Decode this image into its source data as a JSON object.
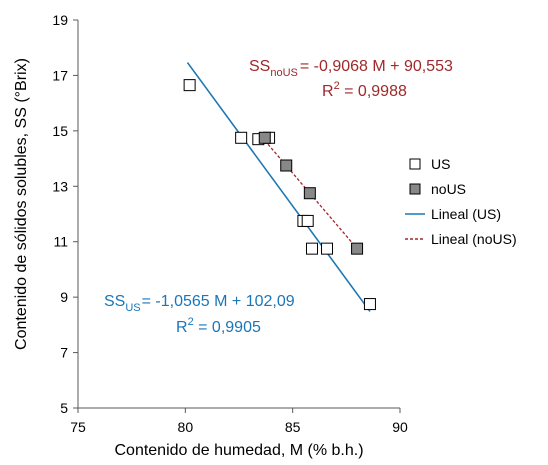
{
  "chart_data": {
    "type": "scatter",
    "xlabel": "Contenido de humedad, M (% b.h.)",
    "ylabel": "Contenido de sólidos solubles, SS (°Brix)",
    "xlim": [
      75,
      90
    ],
    "ylim": [
      5,
      19
    ],
    "x_ticks": [
      "75",
      "80",
      "85",
      "90"
    ],
    "y_ticks": [
      "5",
      "7",
      "9",
      "11",
      "13",
      "15",
      "17",
      "19"
    ],
    "grid": false,
    "legend_position": "right",
    "series": [
      {
        "name": "US",
        "marker": "square-open",
        "color": "#000000",
        "x": [
          80.2,
          82.6,
          83.4,
          83.9,
          85.5,
          85.7,
          85.9,
          86.6,
          88.6
        ],
        "y": [
          16.65,
          14.75,
          14.7,
          14.75,
          11.75,
          11.75,
          10.75,
          10.75,
          8.75
        ]
      },
      {
        "name": "noUS",
        "marker": "square-filled",
        "color": "#888888",
        "x": [
          83.7,
          84.7,
          85.8,
          88.0
        ],
        "y": [
          14.75,
          13.75,
          12.75,
          10.75
        ]
      },
      {
        "name": "Lineal (US)",
        "type": "trendline",
        "style": "solid",
        "color": "#1f77b4",
        "slope": -1.0565,
        "intercept": 102.09,
        "x_range": [
          80.1,
          88.6
        ]
      },
      {
        "name": "Lineal (noUS)",
        "type": "trendline",
        "style": "dashed",
        "color": "#a0282a",
        "slope": -0.9068,
        "intercept": 90.553,
        "x_range": [
          83.7,
          88.0
        ]
      }
    ],
    "annotations": {
      "noUS": {
        "ss": "SS",
        "subscript": "noUS",
        "equation": "= -0,9068 M + 90,553",
        "r2_prefix": "R",
        "r2_sup": "2",
        "r2_value": " = 0,9988",
        "color": "#a0282a"
      },
      "US": {
        "ss": "SS",
        "subscript": "US",
        "equation": "= -1,0565 M + 102,09",
        "r2_prefix": "R",
        "r2_sup": "2",
        "r2_value": " = 0,9905",
        "color": "#1a76b8"
      }
    }
  }
}
